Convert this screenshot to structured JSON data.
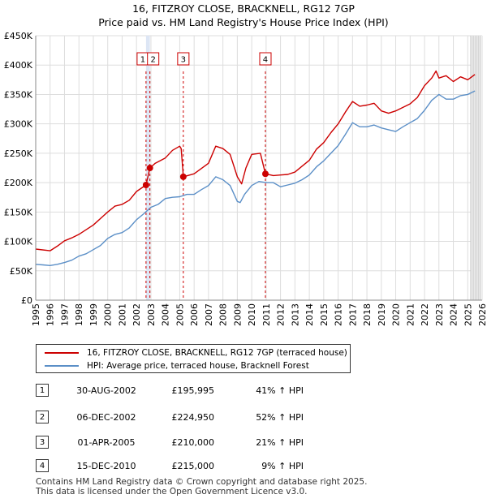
{
  "title_line1": "16, FITZROY CLOSE, BRACKNELL, RG12 7GP",
  "title_line2": "Price paid vs. HM Land Registry's House Price Index (HPI)",
  "chart_data": {
    "type": "line",
    "xlim": [
      1995,
      2026
    ],
    "ylim": [
      0,
      450000
    ],
    "x_ticks": [
      1995,
      1996,
      1997,
      1998,
      1999,
      2000,
      2001,
      2002,
      2003,
      2004,
      2005,
      2006,
      2007,
      2008,
      2009,
      2010,
      2011,
      2012,
      2013,
      2014,
      2015,
      2016,
      2017,
      2018,
      2019,
      2020,
      2021,
      2022,
      2023,
      2024,
      2025,
      2026
    ],
    "y_ticks": [
      0,
      50000,
      100000,
      150000,
      200000,
      250000,
      300000,
      350000,
      400000,
      450000
    ],
    "y_tick_labels": [
      "£0",
      "£50K",
      "£100K",
      "£150K",
      "£200K",
      "£250K",
      "£300K",
      "£350K",
      "£400K",
      "£450K"
    ],
    "colors": {
      "property": "#cc0000",
      "hpi": "#5b8fc7",
      "band": "#dde6f5",
      "vline": "#cc0000"
    },
    "series": [
      {
        "name": "16, FITZROY CLOSE, BRACKNELL, RG12 7GP (terraced house)",
        "x": [
          1995.0,
          1996.0,
          1996.5,
          1997.0,
          1997.5,
          1998.0,
          1999.0,
          2000.0,
          2000.5,
          2001.0,
          2001.5,
          2002.0,
          2002.66,
          2002.93,
          2003.3,
          2004.0,
          2004.5,
          2005.0,
          2005.1,
          2005.25,
          2006.0,
          2007.0,
          2007.5,
          2008.0,
          2008.5,
          2009.0,
          2009.3,
          2009.6,
          2010.0,
          2010.6,
          2010.95,
          2011.5,
          2012.0,
          2012.5,
          2013.0,
          2013.5,
          2014.0,
          2014.5,
          2015.0,
          2015.5,
          2016.0,
          2016.5,
          2017.0,
          2017.5,
          2018.0,
          2018.5,
          2019.0,
          2019.5,
          2020.0,
          2020.5,
          2021.0,
          2021.5,
          2022.0,
          2022.5,
          2022.8,
          2023.0,
          2023.5,
          2024.0,
          2024.5,
          2025.0,
          2025.5
        ],
        "y": [
          87000,
          84000,
          92000,
          101000,
          106000,
          112000,
          128000,
          150000,
          160000,
          163000,
          170000,
          185000,
          195995,
          224950,
          233000,
          242000,
          255000,
          262000,
          258000,
          210000,
          215000,
          233000,
          262000,
          258000,
          248000,
          210000,
          198000,
          225000,
          248000,
          250000,
          215000,
          212000,
          213000,
          214000,
          218000,
          228000,
          238000,
          257000,
          268000,
          285000,
          300000,
          320000,
          338000,
          330000,
          332000,
          335000,
          322000,
          318000,
          322000,
          328000,
          334000,
          345000,
          365000,
          378000,
          390000,
          378000,
          382000,
          372000,
          380000,
          375000,
          384000
        ]
      },
      {
        "name": "HPI: Average price, terraced house, Bracknell Forest",
        "x": [
          1995.0,
          1995.5,
          1996.0,
          1996.5,
          1997.0,
          1997.5,
          1998.0,
          1998.5,
          1999.0,
          1999.5,
          2000.0,
          2000.5,
          2001.0,
          2001.5,
          2002.0,
          2002.5,
          2003.0,
          2003.5,
          2004.0,
          2004.5,
          2005.0,
          2005.5,
          2006.0,
          2006.5,
          2007.0,
          2007.5,
          2008.0,
          2008.5,
          2009.0,
          2009.2,
          2009.5,
          2010.0,
          2010.5,
          2011.0,
          2011.5,
          2012.0,
          2012.5,
          2013.0,
          2013.5,
          2014.0,
          2014.5,
          2015.0,
          2015.5,
          2016.0,
          2016.5,
          2017.0,
          2017.5,
          2018.0,
          2018.5,
          2019.0,
          2019.5,
          2020.0,
          2020.5,
          2021.0,
          2021.5,
          2022.0,
          2022.5,
          2023.0,
          2023.5,
          2024.0,
          2024.5,
          2025.0,
          2025.5
        ],
        "y": [
          61000,
          60000,
          59000,
          61000,
          64000,
          68000,
          75000,
          79000,
          86000,
          93000,
          105000,
          112000,
          115000,
          123000,
          137000,
          147000,
          158000,
          163000,
          173000,
          175000,
          176000,
          180000,
          180000,
          188000,
          195000,
          210000,
          205000,
          195000,
          168000,
          166000,
          180000,
          195000,
          202000,
          200000,
          200000,
          193000,
          196000,
          199000,
          205000,
          213000,
          227000,
          237000,
          250000,
          263000,
          282000,
          302000,
          295000,
          295000,
          298000,
          293000,
          290000,
          287000,
          295000,
          302000,
          309000,
          323000,
          340000,
          350000,
          342000,
          342000,
          348000,
          350000,
          356000
        ]
      }
    ],
    "sale_band": [
      [
        2002.66,
        2002.93
      ],
      [
        2005.25,
        2005.25
      ],
      [
        2010.95,
        2010.95
      ]
    ],
    "markers": [
      {
        "label": "1",
        "x": 2002.66,
        "y": 195995
      },
      {
        "label": "2",
        "x": 2002.93,
        "y": 224950
      },
      {
        "label": "3",
        "x": 2005.25,
        "y": 210000
      },
      {
        "label": "4",
        "x": 2010.95,
        "y": 215000
      }
    ]
  },
  "legend": {
    "property_label": "16, FITZROY CLOSE, BRACKNELL, RG12 7GP (terraced house)",
    "hpi_label": "HPI: Average price, terraced house, Bracknell Forest"
  },
  "transactions": [
    {
      "num": "1",
      "date": "30-AUG-2002",
      "price": "£195,995",
      "hpi": "41% ↑ HPI"
    },
    {
      "num": "2",
      "date": "06-DEC-2002",
      "price": "£224,950",
      "hpi": "52% ↑ HPI"
    },
    {
      "num": "3",
      "date": "01-APR-2005",
      "price": "£210,000",
      "hpi": "21% ↑ HPI"
    },
    {
      "num": "4",
      "date": "15-DEC-2010",
      "price": "£215,000",
      "hpi": "9% ↑ HPI"
    }
  ],
  "footer_line1": "Contains HM Land Registry data © Crown copyright and database right 2025.",
  "footer_line2": "This data is licensed under the Open Government Licence v3.0."
}
